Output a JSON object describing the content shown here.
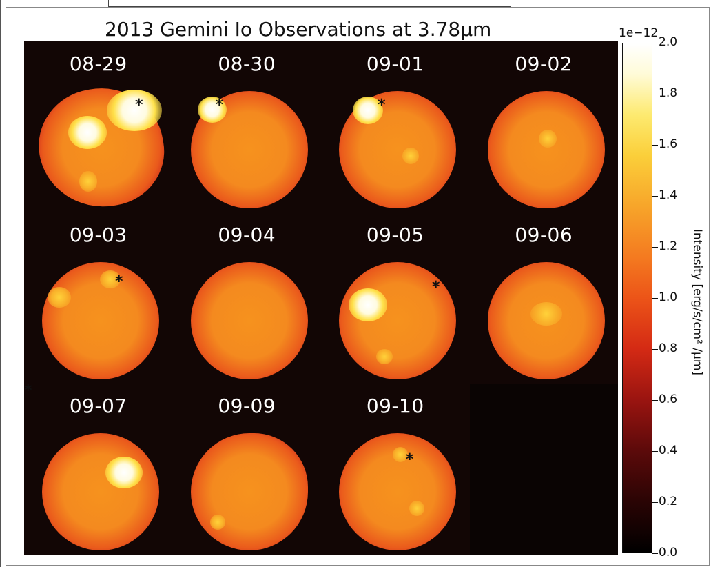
{
  "title": "2013 Gemini Io Observations at 3.78μm",
  "panels": [
    {
      "label": "08-29",
      "marker": "*"
    },
    {
      "label": "08-30",
      "marker": "*"
    },
    {
      "label": "09-01",
      "marker": "*"
    },
    {
      "label": "09-02",
      "marker": ""
    },
    {
      "label": "09-03",
      "marker": "*"
    },
    {
      "label": "09-04",
      "marker": ""
    },
    {
      "label": "09-05",
      "marker": "*"
    },
    {
      "label": "09-06",
      "marker": ""
    },
    {
      "label": "09-07",
      "marker": "*"
    },
    {
      "label": "09-09",
      "marker": ""
    },
    {
      "label": "09-10",
      "marker": "*"
    },
    {
      "label": "",
      "marker": ""
    }
  ],
  "colorbar": {
    "exponent": "1e−12",
    "label": "Intensity [erg/s/cm² /μm]",
    "ticks": [
      "0.0",
      "0.2",
      "0.4",
      "0.6",
      "0.8",
      "1.0",
      "1.2",
      "1.4",
      "1.6",
      "1.8",
      "2.0"
    ]
  }
}
